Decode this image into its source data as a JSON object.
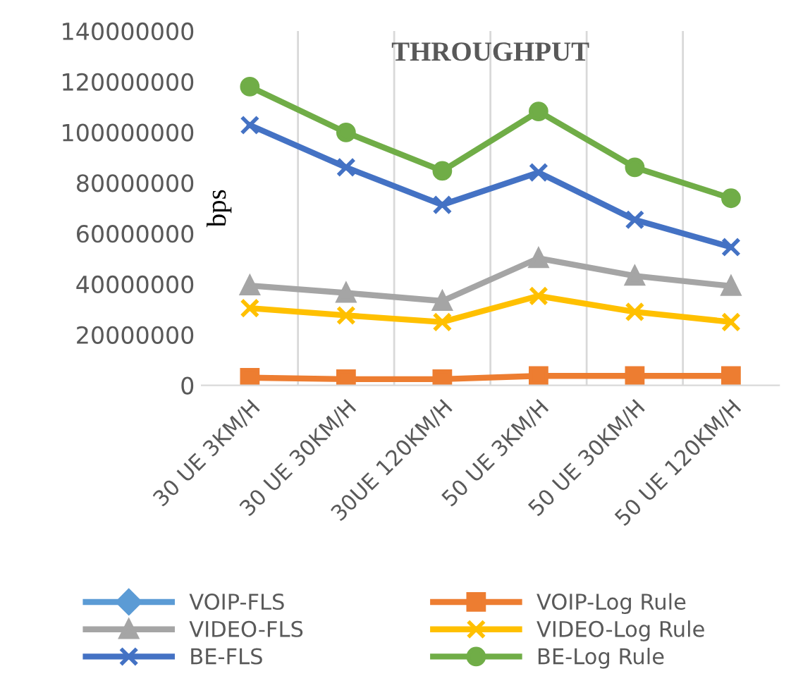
{
  "chart_data": {
    "type": "line",
    "title": "THROUGHPUT",
    "ylabel": "bps",
    "categories": [
      "30 UE 3KM/H",
      "30 UE 30KM/H",
      "30UE 120KM/H",
      "50 UE 3KM/H",
      "50 UE 30KM/H",
      "50 UE 120KM/H"
    ],
    "series": [
      {
        "name": "VOIP-FLS",
        "color": "#5b9bd5",
        "marker": "diamond",
        "values": [
          null,
          null,
          null,
          null,
          null,
          null
        ]
      },
      {
        "name": "VOIP-Log Rule",
        "color": "#ed7d31",
        "marker": "square",
        "values": [
          3000000,
          2400000,
          2400000,
          3700000,
          3700000,
          3700000
        ]
      },
      {
        "name": "VIDEO-FLS",
        "color": "#a5a5a5",
        "marker": "triangle",
        "values": [
          39400000,
          36500000,
          33300000,
          50200000,
          43200000,
          39200000
        ]
      },
      {
        "name": "VIDEO-Log Rule",
        "color": "#ffc000",
        "marker": "cross",
        "values": [
          30500000,
          27600000,
          25000000,
          35300000,
          29000000,
          25000000
        ]
      },
      {
        "name": "BE-FLS",
        "color": "#4472c4",
        "marker": "cross",
        "values": [
          102800000,
          86100000,
          71300000,
          84100000,
          65400000,
          54600000
        ]
      },
      {
        "name": "BE-Log Rule",
        "color": "#70ad47",
        "marker": "circle",
        "values": [
          118000000,
          99900000,
          84700000,
          108200000,
          86100000,
          73900000
        ]
      }
    ],
    "ylim": [
      0,
      140000000
    ],
    "yticks": [
      0,
      20000000,
      40000000,
      60000000,
      80000000,
      100000000,
      120000000,
      140000000
    ],
    "grid": "x",
    "legend": "bottom"
  }
}
